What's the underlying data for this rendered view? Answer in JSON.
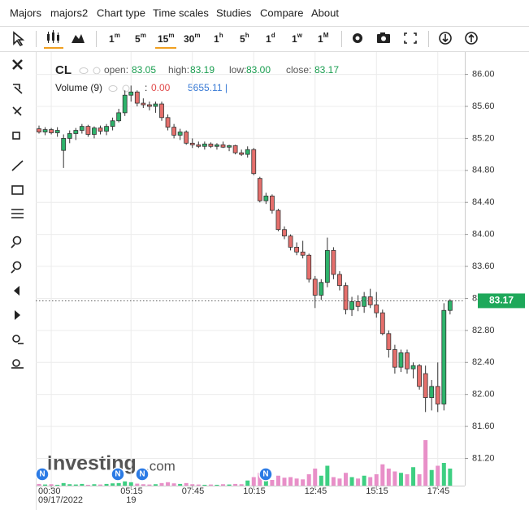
{
  "menu": [
    "Majors",
    "majors2",
    "Chart type",
    "Time scales",
    "Studies",
    "Compare",
    "About"
  ],
  "toolbar": {
    "timeframes": [
      {
        "main": "1",
        "sup": "m"
      },
      {
        "main": "5",
        "sup": "m"
      },
      {
        "main": "15",
        "sup": "m"
      },
      {
        "main": "30",
        "sup": "m"
      },
      {
        "main": "1",
        "sup": "h"
      },
      {
        "main": "5",
        "sup": "h"
      },
      {
        "main": "1",
        "sup": "d"
      },
      {
        "main": "1",
        "sup": "w"
      },
      {
        "main": "1",
        "sup": "M"
      }
    ],
    "active": 2
  },
  "logo": {
    "brand": "Investing",
    "domain": ".com"
  },
  "news_markers": [
    "N",
    "N",
    "N",
    "N"
  ],
  "chart_data": {
    "type": "candlestick",
    "title": "CL",
    "readout": [
      {
        "label": "open:",
        "value": "83.05"
      },
      {
        "label": "high:",
        "value": "83.19"
      },
      {
        "label": "low:",
        "value": "83.00"
      },
      {
        "label": "close:",
        "value": "83.17"
      }
    ],
    "volume_title": "Volume (9)",
    "volume_readout": {
      "sep": ":",
      "change": "0.00",
      "value": "5655.11 |"
    },
    "categories": [
      null,
      null,
      "00:30",
      null,
      null,
      null,
      null,
      null,
      null,
      null,
      null,
      null,
      null,
      null,
      null,
      "05:15",
      null,
      null,
      null,
      null,
      null,
      null,
      null,
      null,
      null,
      "07:45",
      null,
      null,
      null,
      null,
      null,
      null,
      null,
      null,
      null,
      "10:15",
      null,
      null,
      null,
      null,
      null,
      null,
      null,
      null,
      null,
      "12:45",
      null,
      null,
      null,
      null,
      null,
      null,
      null,
      null,
      null,
      "15:15",
      null,
      null,
      null,
      null,
      null,
      null,
      null,
      null,
      null,
      "17:45",
      null,
      null
    ],
    "category_dates": [
      null,
      null,
      "09/17/2022",
      null,
      null,
      null,
      null,
      null,
      null,
      null,
      null,
      null,
      null,
      null,
      null,
      "19",
      null,
      null,
      null,
      null,
      null,
      null,
      null,
      null,
      null,
      null,
      null,
      null,
      null,
      null,
      null,
      null,
      null,
      null,
      null,
      null,
      null,
      null,
      null,
      null,
      null,
      null,
      null,
      null,
      null,
      null,
      null,
      null,
      null,
      null,
      null,
      null,
      null,
      null,
      null,
      null,
      null,
      null,
      null,
      null,
      null,
      null,
      null,
      null,
      null,
      null,
      null,
      null
    ],
    "open": [
      85.32,
      85.28,
      85.31,
      85.27,
      85.05,
      85.2,
      85.26,
      85.3,
      85.35,
      85.25,
      85.33,
      85.29,
      85.35,
      85.42,
      85.52,
      85.74,
      85.78,
      85.64,
      85.62,
      85.6,
      85.63,
      85.46,
      85.34,
      85.24,
      85.28,
      85.14,
      85.12,
      85.1,
      85.13,
      85.1,
      85.12,
      85.09,
      85.11,
      85.02,
      85.0,
      85.06,
      84.7,
      84.42,
      84.48,
      84.3,
      84.06,
      83.98,
      83.84,
      83.78,
      83.74,
      83.44,
      83.24,
      83.4,
      83.8,
      83.5,
      83.36,
      83.06,
      83.16,
      83.1,
      83.22,
      83.12,
      83.02,
      82.76,
      82.56,
      82.34,
      82.52,
      82.32,
      82.36,
      82.26,
      81.96,
      82.1,
      81.88,
      83.05
    ],
    "high": [
      85.36,
      85.34,
      85.33,
      85.34,
      85.25,
      85.3,
      85.33,
      85.38,
      85.37,
      85.35,
      85.36,
      85.38,
      85.46,
      85.57,
      85.8,
      85.86,
      85.8,
      85.7,
      85.66,
      85.66,
      85.66,
      85.5,
      85.38,
      85.32,
      85.3,
      85.2,
      85.16,
      85.16,
      85.15,
      85.14,
      85.16,
      85.12,
      85.12,
      85.06,
      85.1,
      85.08,
      84.72,
      84.52,
      84.5,
      84.32,
      84.1,
      84.0,
      83.9,
      83.92,
      83.76,
      83.48,
      83.44,
      83.96,
      83.84,
      83.54,
      83.4,
      83.22,
      83.24,
      83.28,
      83.32,
      83.28,
      83.06,
      82.8,
      82.62,
      82.56,
      82.56,
      82.4,
      82.38,
      82.36,
      82.18,
      82.4,
      83.14,
      83.19
    ],
    "low": [
      85.26,
      85.24,
      85.25,
      85.22,
      84.83,
      85.14,
      85.18,
      85.26,
      85.22,
      85.2,
      85.25,
      85.24,
      85.3,
      85.4,
      85.48,
      85.66,
      85.6,
      85.58,
      85.55,
      85.52,
      85.42,
      85.3,
      85.2,
      85.18,
      85.12,
      85.08,
      85.08,
      85.06,
      85.08,
      85.06,
      85.08,
      85.04,
      85.0,
      84.98,
      84.96,
      84.74,
      84.4,
      84.38,
      84.26,
      84.04,
      83.94,
      83.8,
      83.74,
      83.7,
      83.4,
      83.08,
      83.18,
      83.34,
      83.44,
      83.3,
      83.0,
      82.98,
      83.04,
      83.02,
      83.08,
      82.96,
      82.74,
      82.46,
      82.26,
      82.28,
      82.26,
      82.2,
      82.06,
      81.78,
      81.8,
      81.78,
      81.8,
      83.0
    ],
    "close": [
      85.28,
      85.31,
      85.27,
      85.3,
      85.2,
      85.26,
      85.3,
      85.35,
      85.25,
      85.33,
      85.29,
      85.35,
      85.42,
      85.52,
      85.74,
      85.78,
      85.64,
      85.62,
      85.6,
      85.63,
      85.46,
      85.34,
      85.24,
      85.28,
      85.14,
      85.12,
      85.1,
      85.13,
      85.1,
      85.12,
      85.09,
      85.11,
      85.02,
      85.0,
      85.06,
      84.76,
      84.42,
      84.48,
      84.3,
      84.06,
      83.98,
      83.84,
      83.78,
      83.74,
      83.44,
      83.24,
      83.4,
      83.8,
      83.5,
      83.36,
      83.06,
      83.16,
      83.1,
      83.22,
      83.12,
      83.02,
      82.76,
      82.56,
      82.34,
      82.52,
      82.32,
      82.36,
      82.1,
      81.96,
      82.1,
      81.88,
      83.05,
      83.17
    ],
    "volume": [
      600,
      400,
      500,
      300,
      900,
      500,
      400,
      600,
      300,
      500,
      400,
      600,
      800,
      900,
      1500,
      1200,
      700,
      500,
      400,
      500,
      900,
      1200,
      800,
      600,
      900,
      500,
      400,
      300,
      400,
      300,
      500,
      400,
      600,
      500,
      1800,
      3000,
      4500,
      2500,
      2000,
      3500,
      2800,
      3000,
      2500,
      2200,
      4000,
      6000,
      3500,
      7000,
      3000,
      2500,
      4500,
      3000,
      2500,
      3500,
      3000,
      4000,
      7500,
      6000,
      5000,
      4500,
      4000,
      6500,
      4000,
      16000,
      5500,
      7000,
      8000,
      6000
    ],
    "up_color": "#2eb36b",
    "down_color": "#e56f6c",
    "up_volume_color": "#3ecf82",
    "down_volume_color": "#e88fc8",
    "ylim": [
      80.86,
      86.28
    ],
    "yticks": [
      {
        "value": 86,
        "label": "86.00"
      },
      {
        "value": 85.6,
        "label": "85.60"
      },
      {
        "value": 85.2,
        "label": "85.20"
      },
      {
        "value": 84.8,
        "label": "84.80"
      },
      {
        "value": 84.4,
        "label": "84.40"
      },
      {
        "value": 84,
        "label": "84.00"
      },
      {
        "value": 83.6,
        "label": "83.60"
      },
      {
        "value": 83.2,
        "label": "83.20"
      },
      {
        "value": 82.8,
        "label": "82.80"
      },
      {
        "value": 82.4,
        "label": "82.40"
      },
      {
        "value": 82,
        "label": "82.00"
      },
      {
        "value": 81.6,
        "label": "81.60"
      },
      {
        "value": 81.2,
        "label": "81.20"
      }
    ],
    "grid": true,
    "last_price_line": true,
    "last_price_color": "#1ea85a"
  }
}
